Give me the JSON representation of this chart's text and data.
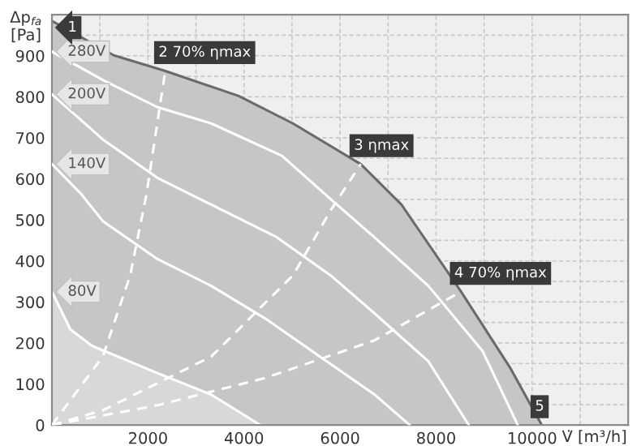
{
  "chart_data": {
    "type": "line",
    "ylabel": "Δp$_{fa}$\n[Pa]",
    "xlabel": "V̇ [m³/h]",
    "xlim": [
      0,
      12000
    ],
    "ylim": [
      0,
      1000
    ],
    "xticks": [
      {
        "value": 1000,
        "label": null
      },
      2000,
      {
        "value": 3000,
        "label": null
      },
      4000,
      {
        "value": 5000,
        "label": null
      },
      6000,
      {
        "value": 7000,
        "label": null
      },
      8000,
      {
        "value": 9000,
        "label": null
      },
      10000,
      {
        "value": 11000,
        "label": null
      }
    ],
    "yticks": [
      0,
      {
        "value": 50,
        "label": null
      },
      100,
      {
        "value": 150,
        "label": null
      },
      200,
      {
        "value": 250,
        "label": null
      },
      300,
      {
        "value": 350,
        "label": null
      },
      400,
      {
        "value": 450,
        "label": null
      },
      500,
      {
        "value": 550,
        "label": null
      },
      600,
      {
        "value": 650,
        "label": null
      },
      700,
      {
        "value": 750,
        "label": null
      },
      800,
      {
        "value": 850,
        "label": null
      },
      900,
      {
        "value": 950,
        "label": null
      }
    ],
    "grid": true,
    "legend": false,
    "series": [
      {
        "type": "area",
        "color": "#c6c6c6",
        "x": [
          0,
          1290,
          2360,
          3890,
          5020,
          6430,
          7280,
          8520,
          9540,
          10200
        ],
        "values": [
          985,
          901,
          863,
          802,
          735,
          636,
          537,
          325,
          140,
          0
        ]
      },
      {
        "type": "area",
        "name": "80V",
        "color": "#d8d8d8",
        "x": [
          0,
          385,
          836,
          2190,
          3320,
          4340
        ],
        "values": [
          325,
          233,
          193,
          127,
          74,
          0
        ]
      },
      {
        "name": "280V",
        "color": "#ffffff",
        "line_style": "solid",
        "x": [
          0,
          1060,
          2190,
          3320,
          4790,
          5800,
          6710,
          7840,
          8970,
          9700
        ],
        "values": [
          910,
          841,
          775,
          735,
          656,
          551,
          458,
          339,
          180,
          0
        ]
      },
      {
        "name": "200V",
        "color": "#ffffff",
        "line_style": "solid",
        "x": [
          0,
          1060,
          2190,
          3320,
          4680,
          5800,
          6710,
          7840,
          8680
        ],
        "values": [
          806,
          696,
          603,
          537,
          458,
          365,
          273,
          155,
          0
        ]
      },
      {
        "name": "140V",
        "color": "#ffffff",
        "line_style": "solid",
        "x": [
          0,
          610,
          1060,
          2190,
          3320,
          4450,
          5580,
          6710,
          7450
        ],
        "values": [
          636,
          563,
          497,
          405,
          339,
          259,
          167,
          75,
          0
        ]
      },
      {
        "type": "line",
        "color": "#ffffff",
        "line_style": "dashed",
        "x": [
          0,
          1060,
          1630,
          1970,
          2360
        ],
        "values": [
          0,
          167,
          365,
          563,
          863
        ]
      },
      {
        "type": "line",
        "color": "#ffffff",
        "line_style": "dashed",
        "x": [
          0,
          1060,
          3320,
          5020,
          5810,
          6430
        ],
        "values": [
          0,
          36,
          167,
          365,
          524,
          636
        ]
      },
      {
        "type": "line",
        "color": "#ffffff",
        "line_style": "dashed",
        "x": [
          0,
          2190,
          4450,
          6710,
          8520
        ],
        "values": [
          0,
          48,
          115,
          206,
          325
        ]
      }
    ],
    "annotations": [
      {
        "text": "1",
        "x": 0,
        "y": 985
      },
      {
        "text": "2 70% ηmax",
        "x": 2360,
        "y": 863
      },
      {
        "text": "3 ηmax",
        "x": 6430,
        "y": 636
      },
      {
        "text": "4 70% ηmax",
        "x": 8520,
        "y": 325
      },
      {
        "text": "5",
        "x": 10200,
        "y": 0
      }
    ]
  }
}
